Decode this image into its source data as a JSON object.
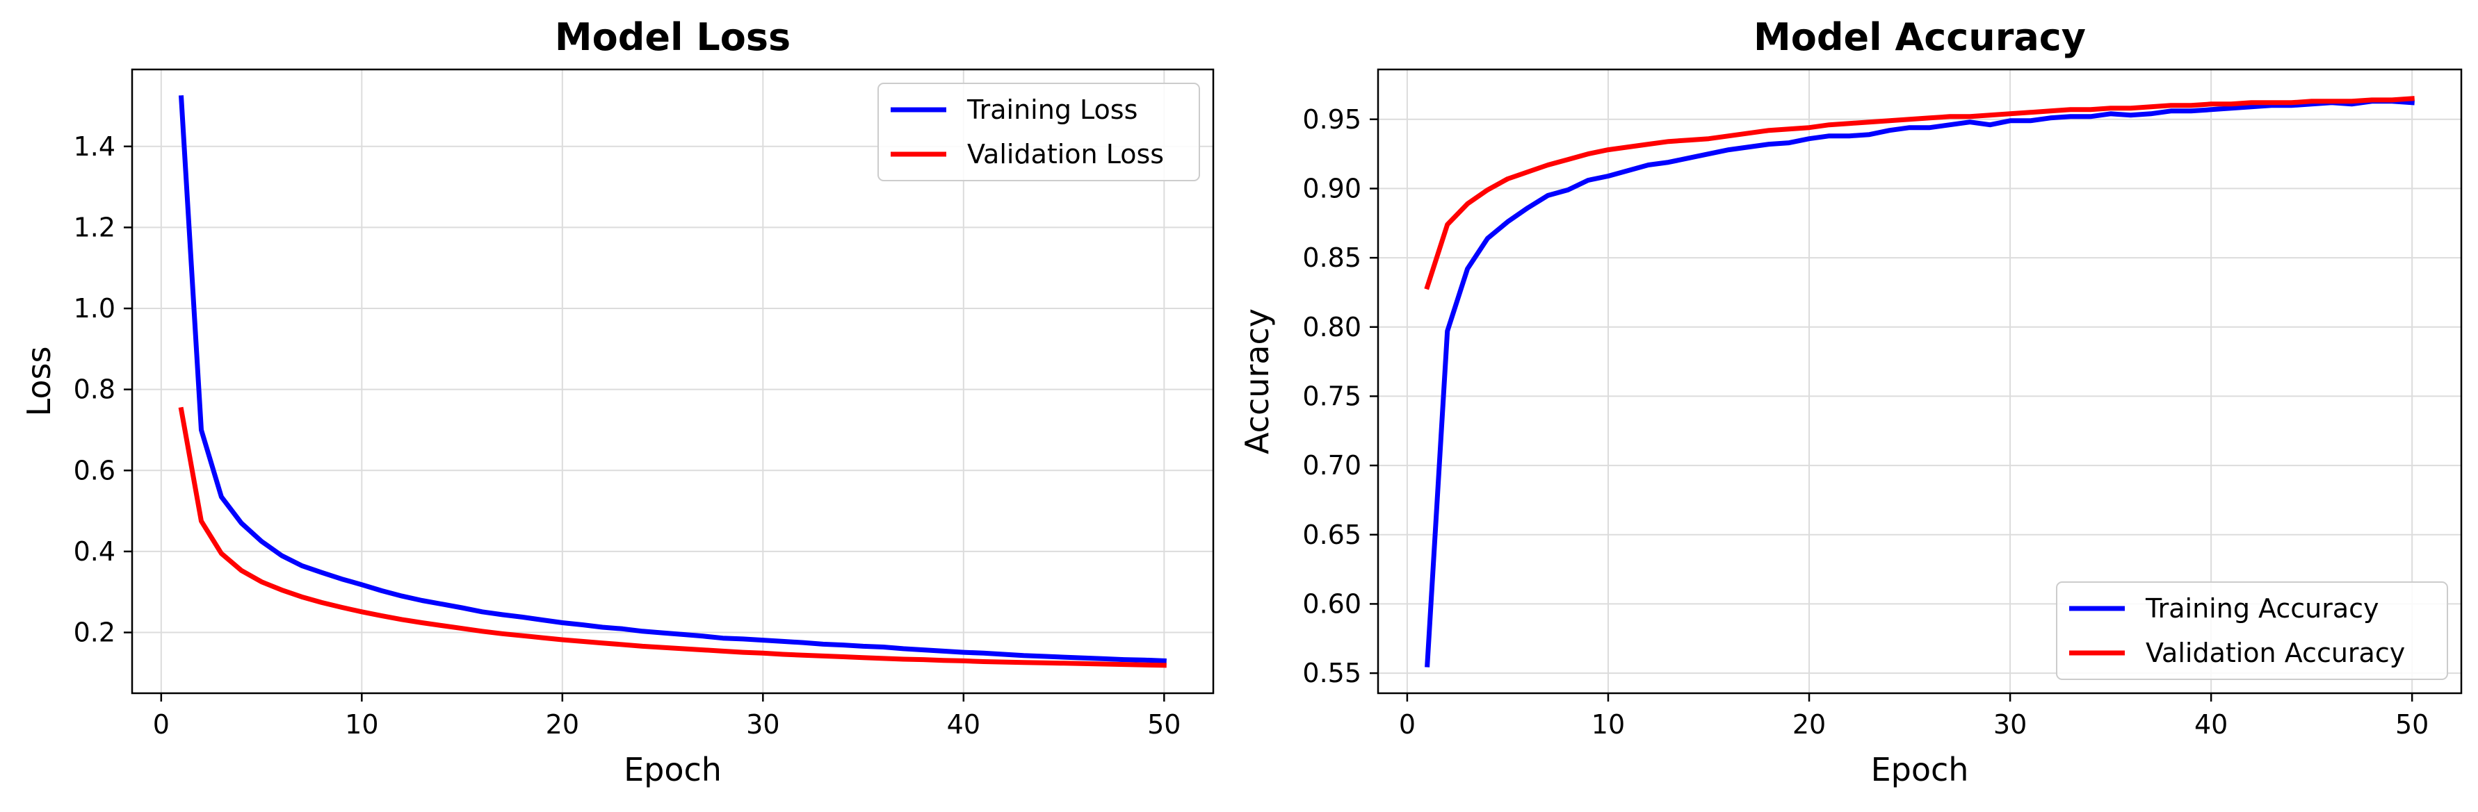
{
  "chart_data": [
    {
      "type": "line",
      "title": "Model Loss",
      "xlabel": "Epoch",
      "ylabel": "Loss",
      "xlim": [
        -1.45,
        52.45
      ],
      "ylim": [
        0.05,
        1.59
      ],
      "xticks": [
        0,
        10,
        20,
        30,
        40,
        50
      ],
      "yticks": [
        0.2,
        0.4,
        0.6,
        0.8,
        1.0,
        1.2,
        1.4
      ],
      "ytick_labels": [
        "0.2",
        "0.4",
        "0.6",
        "0.8",
        "1.0",
        "1.2",
        "1.4"
      ],
      "grid": true,
      "legend_position": "top-right",
      "series": [
        {
          "name": "Training Loss",
          "color": "#0000ff",
          "x": [
            1,
            2,
            3,
            4,
            5,
            6,
            7,
            8,
            9,
            10,
            11,
            12,
            13,
            14,
            15,
            16,
            17,
            18,
            19,
            20,
            21,
            22,
            23,
            24,
            25,
            26,
            27,
            28,
            29,
            30,
            31,
            32,
            33,
            34,
            35,
            36,
            37,
            38,
            39,
            40,
            41,
            42,
            43,
            44,
            45,
            46,
            47,
            48,
            49,
            50
          ],
          "values": [
            1.52,
            0.7,
            0.535,
            0.47,
            0.425,
            0.39,
            0.365,
            0.348,
            0.332,
            0.318,
            0.303,
            0.29,
            0.279,
            0.27,
            0.261,
            0.251,
            0.244,
            0.238,
            0.231,
            0.224,
            0.219,
            0.213,
            0.209,
            0.203,
            0.199,
            0.195,
            0.191,
            0.186,
            0.184,
            0.181,
            0.178,
            0.175,
            0.171,
            0.169,
            0.166,
            0.164,
            0.16,
            0.157,
            0.154,
            0.151,
            0.149,
            0.146,
            0.143,
            0.141,
            0.139,
            0.137,
            0.135,
            0.133,
            0.132,
            0.13
          ]
        },
        {
          "name": "Validation Loss",
          "color": "#ff0000",
          "x": [
            1,
            2,
            3,
            4,
            5,
            6,
            7,
            8,
            9,
            10,
            11,
            12,
            13,
            14,
            15,
            16,
            17,
            18,
            19,
            20,
            21,
            22,
            23,
            24,
            25,
            26,
            27,
            28,
            29,
            30,
            31,
            32,
            33,
            34,
            35,
            36,
            37,
            38,
            39,
            40,
            41,
            42,
            43,
            44,
            45,
            46,
            47,
            48,
            49,
            50
          ],
          "values": [
            0.75,
            0.475,
            0.395,
            0.353,
            0.325,
            0.305,
            0.288,
            0.274,
            0.262,
            0.251,
            0.241,
            0.232,
            0.224,
            0.217,
            0.21,
            0.203,
            0.197,
            0.192,
            0.187,
            0.182,
            0.178,
            0.174,
            0.17,
            0.166,
            0.163,
            0.16,
            0.157,
            0.154,
            0.151,
            0.149,
            0.146,
            0.144,
            0.142,
            0.14,
            0.138,
            0.136,
            0.134,
            0.133,
            0.131,
            0.13,
            0.128,
            0.127,
            0.126,
            0.125,
            0.124,
            0.123,
            0.122,
            0.121,
            0.12,
            0.119
          ]
        }
      ]
    },
    {
      "type": "line",
      "title": "Model Accuracy",
      "xlabel": "Epoch",
      "ylabel": "Accuracy",
      "xlim": [
        -1.45,
        52.45
      ],
      "ylim": [
        0.5355,
        0.986
      ],
      "xticks": [
        0,
        10,
        20,
        30,
        40,
        50
      ],
      "yticks": [
        0.55,
        0.6,
        0.65,
        0.7,
        0.75,
        0.8,
        0.85,
        0.9,
        0.95
      ],
      "ytick_labels": [
        "0.55",
        "0.60",
        "0.65",
        "0.70",
        "0.75",
        "0.80",
        "0.85",
        "0.90",
        "0.95"
      ],
      "grid": true,
      "legend_position": "bottom-right",
      "series": [
        {
          "name": "Training Accuracy",
          "color": "#0000ff",
          "x": [
            1,
            2,
            3,
            4,
            5,
            6,
            7,
            8,
            9,
            10,
            11,
            12,
            13,
            14,
            15,
            16,
            17,
            18,
            19,
            20,
            21,
            22,
            23,
            24,
            25,
            26,
            27,
            28,
            29,
            30,
            31,
            32,
            33,
            34,
            35,
            36,
            37,
            38,
            39,
            40,
            41,
            42,
            43,
            44,
            45,
            46,
            47,
            48,
            49,
            50
          ],
          "values": [
            0.556,
            0.797,
            0.842,
            0.864,
            0.876,
            0.886,
            0.895,
            0.899,
            0.906,
            0.909,
            0.913,
            0.917,
            0.919,
            0.922,
            0.925,
            0.928,
            0.93,
            0.932,
            0.933,
            0.936,
            0.938,
            0.938,
            0.939,
            0.942,
            0.944,
            0.944,
            0.946,
            0.948,
            0.946,
            0.949,
            0.949,
            0.951,
            0.952,
            0.952,
            0.954,
            0.953,
            0.954,
            0.956,
            0.956,
            0.957,
            0.958,
            0.959,
            0.96,
            0.96,
            0.961,
            0.962,
            0.961,
            0.963,
            0.963,
            0.962
          ]
        },
        {
          "name": "Validation Accuracy",
          "color": "#ff0000",
          "x": [
            1,
            2,
            3,
            4,
            5,
            6,
            7,
            8,
            9,
            10,
            11,
            12,
            13,
            14,
            15,
            16,
            17,
            18,
            19,
            20,
            21,
            22,
            23,
            24,
            25,
            26,
            27,
            28,
            29,
            30,
            31,
            32,
            33,
            34,
            35,
            36,
            37,
            38,
            39,
            40,
            41,
            42,
            43,
            44,
            45,
            46,
            47,
            48,
            49,
            50
          ],
          "values": [
            0.829,
            0.874,
            0.889,
            0.899,
            0.907,
            0.912,
            0.917,
            0.921,
            0.925,
            0.928,
            0.93,
            0.932,
            0.934,
            0.935,
            0.936,
            0.938,
            0.94,
            0.942,
            0.943,
            0.944,
            0.946,
            0.947,
            0.948,
            0.949,
            0.95,
            0.951,
            0.952,
            0.952,
            0.953,
            0.954,
            0.955,
            0.956,
            0.957,
            0.957,
            0.958,
            0.958,
            0.959,
            0.96,
            0.96,
            0.961,
            0.961,
            0.962,
            0.962,
            0.962,
            0.963,
            0.963,
            0.963,
            0.964,
            0.964,
            0.965
          ]
        }
      ]
    }
  ]
}
